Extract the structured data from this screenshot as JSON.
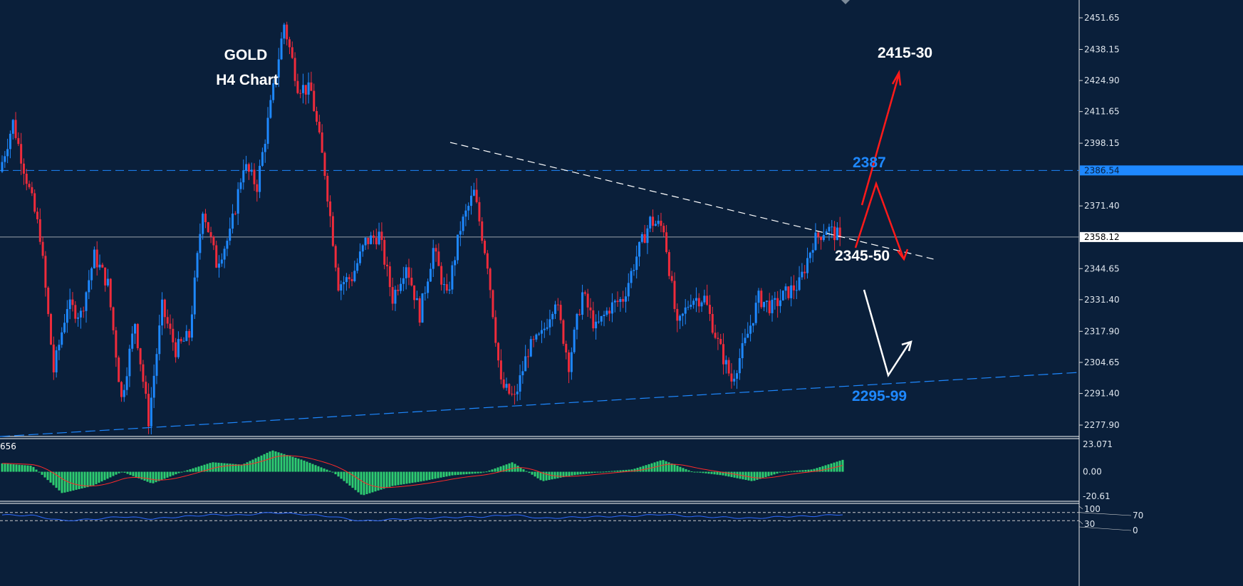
{
  "chart_data": {
    "type": "candlestick",
    "title": "GOLD",
    "subtitle": "H4 Chart",
    "price_axis": {
      "ticks": [
        "2451.65",
        "2438.15",
        "2424.90",
        "2411.65",
        "2398.15",
        "2371.40",
        "2344.65",
        "2331.40",
        "2317.90",
        "2304.65",
        "2291.40",
        "2277.90"
      ],
      "range": [
        2277.9,
        2451.65
      ]
    },
    "current_price": "2358.12",
    "resistance_price": "2386.54",
    "closes": [
      2386,
      2407,
      2383,
      2359,
      2301,
      2329,
      2325,
      2350,
      2338,
      2289,
      2322,
      2280,
      2328,
      2310,
      2316,
      2371,
      2347,
      2359,
      2389,
      2380,
      2414,
      2449,
      2423,
      2420,
      2386,
      2338,
      2341,
      2356,
      2359,
      2332,
      2347,
      2325,
      2353,
      2332,
      2362,
      2377,
      2347,
      2295,
      2289,
      2310,
      2316,
      2332,
      2304,
      2334,
      2319,
      2328,
      2332,
      2350,
      2365,
      2362,
      2319,
      2332,
      2332,
      2313,
      2297,
      2313,
      2332,
      2328,
      2334,
      2338,
      2356,
      2362,
      2358
    ],
    "annotations": {
      "target_up": "2415-30",
      "level_2387": "2387",
      "level_mid": "2345-50",
      "support": "2295-99"
    },
    "colors": {
      "bull": "#1e88ff",
      "bear": "#ee2b3b",
      "background": "#0a1f3a",
      "macd_hist": "#2ecc71",
      "signal": "#ff2a2a",
      "rsi": "#2f6bff"
    },
    "macd": {
      "label": "656",
      "ticks": [
        "23.071",
        "0.00",
        "-20.61"
      ],
      "range": [
        -20.61,
        23.071
      ],
      "histogram": [
        7,
        5,
        -18,
        -12,
        0,
        -10,
        0,
        8,
        6,
        18,
        10,
        0,
        -20,
        -12,
        -8,
        -3,
        -1,
        8,
        -8,
        -3,
        0,
        2,
        10,
        0,
        -3,
        -8,
        0,
        2,
        10
      ]
    },
    "rsi": {
      "ticks": [
        "100",
        "70",
        "30",
        "0"
      ],
      "levels": [
        70,
        30
      ]
    }
  }
}
